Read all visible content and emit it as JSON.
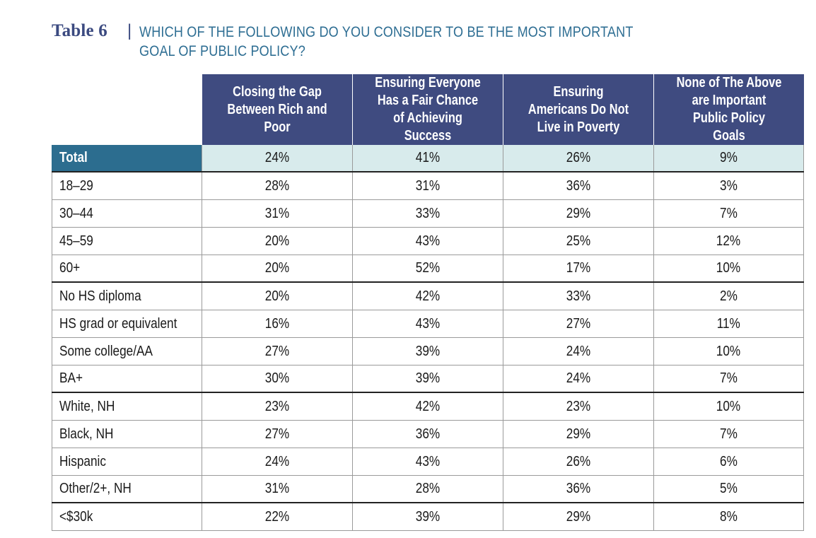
{
  "title": {
    "label": "Table 6",
    "separator": "|",
    "line1": "WHICH OF THE FOLLOWING DO YOU CONSIDER TO BE THE MOST IMPORTANT",
    "line2": "GOAL OF PUBLIC POLICY?"
  },
  "columns": [
    "Closing the Gap Between Rich and Poor",
    "Ensuring Everyone Has a Fair Chance of Achieving Success",
    "Ensuring Americans Do Not Live in Poverty",
    "None of The Above are Important Public Policy Goals"
  ],
  "colors": {
    "header_bg": "#3f4b80",
    "total_label_bg": "#2c6d8f",
    "total_row_bg": "#d8ebec",
    "title_label": "#3b4a80",
    "title_text": "#2e6e93"
  },
  "rows": [
    {
      "label": "Total",
      "values": [
        "24%",
        "41%",
        "26%",
        "9%"
      ]
    },
    {
      "label": "18–29",
      "values": [
        "28%",
        "31%",
        "36%",
        "3%"
      ]
    },
    {
      "label": "30–44",
      "values": [
        "31%",
        "33%",
        "29%",
        "7%"
      ]
    },
    {
      "label": "45–59",
      "values": [
        "20%",
        "43%",
        "25%",
        "12%"
      ]
    },
    {
      "label": "60+",
      "values": [
        "20%",
        "52%",
        "17%",
        "10%"
      ]
    },
    {
      "label": "No HS diploma",
      "values": [
        "20%",
        "42%",
        "33%",
        "2%"
      ]
    },
    {
      "label": "HS grad or equivalent",
      "values": [
        "16%",
        "43%",
        "27%",
        "11%"
      ]
    },
    {
      "label": "Some college/AA",
      "values": [
        "27%",
        "39%",
        "24%",
        "10%"
      ]
    },
    {
      "label": "BA+",
      "values": [
        "30%",
        "39%",
        "24%",
        "7%"
      ]
    },
    {
      "label": "White, NH",
      "values": [
        "23%",
        "42%",
        "23%",
        "10%"
      ]
    },
    {
      "label": "Black, NH",
      "values": [
        "27%",
        "36%",
        "29%",
        "7%"
      ]
    },
    {
      "label": "Hispanic",
      "values": [
        "24%",
        "43%",
        "26%",
        "6%"
      ]
    },
    {
      "label": "Other/2+, NH",
      "values": [
        "31%",
        "28%",
        "36%",
        "5%"
      ]
    },
    {
      "label": "<$30k",
      "values": [
        "22%",
        "39%",
        "29%",
        "8%"
      ]
    }
  ]
}
